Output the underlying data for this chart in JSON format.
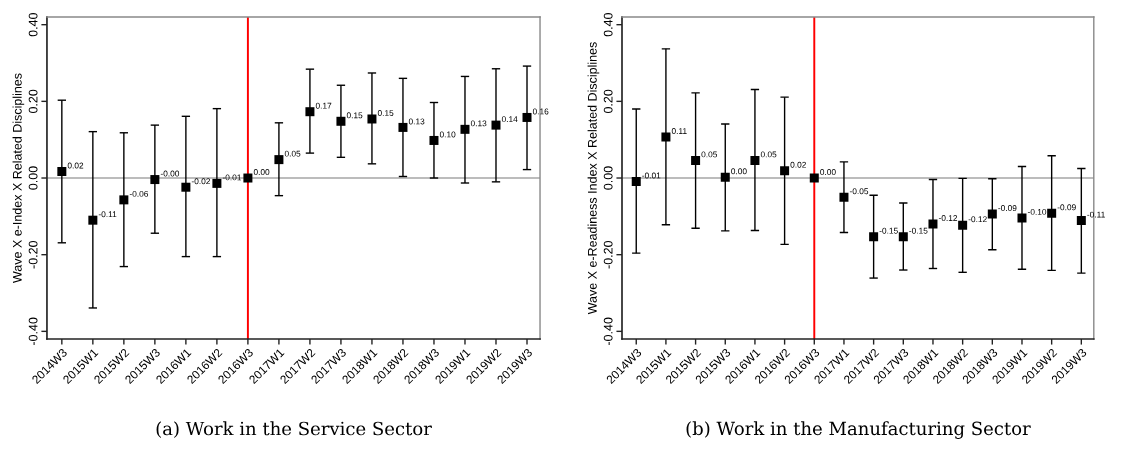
{
  "chart_data": [
    {
      "type": "scatter",
      "categories": [
        "2014W3",
        "2015W1",
        "2015W2",
        "2015W3",
        "2016W1",
        "2016W2",
        "2016W3",
        "2017W1",
        "2017W2",
        "2017W3",
        "2018W1",
        "2018W2",
        "2018W3",
        "2019W1",
        "2019W2",
        "2019W3"
      ],
      "series": [
        {
          "color": "#000000",
          "values": [
            0.017,
            -0.11,
            -0.057,
            -0.004,
            -0.024,
            -0.014,
            0.0,
            0.048,
            0.173,
            0.148,
            0.154,
            0.132,
            0.098,
            0.127,
            0.138,
            0.158
          ],
          "errors": [
            [
              -0.169,
              0.203
            ],
            [
              -0.339,
              0.121
            ],
            [
              -0.231,
              0.118
            ],
            [
              -0.144,
              0.138
            ],
            [
              -0.205,
              0.161
            ],
            [
              -0.205,
              0.181
            ],
            null,
            [
              -0.046,
              0.144
            ],
            [
              0.065,
              0.284
            ],
            [
              0.054,
              0.242
            ],
            [
              0.037,
              0.274
            ],
            [
              0.004,
              0.26
            ],
            [
              0.0,
              0.197
            ],
            [
              -0.013,
              0.265
            ],
            [
              -0.01,
              0.285
            ],
            [
              0.022,
              0.292
            ]
          ],
          "value_labels": [
            "0.02",
            "-0.11",
            "-0.06",
            "-0.00",
            "-0.02",
            "-0.01",
            "0.00",
            "0.05",
            "0.17",
            "0.15",
            "0.15",
            "0.13",
            "0.10",
            "0.13",
            "0.14",
            "0.16"
          ]
        }
      ],
      "marker": "square",
      "ylabel": "Wave X e-Index X Related Disciplines",
      "ylim": [
        -0.42,
        0.42
      ],
      "yticks": [
        {
          "value": -0.4,
          "label": "-0.40"
        },
        {
          "value": -0.2,
          "label": "-0.20"
        },
        {
          "value": 0,
          "label": "0.00"
        },
        {
          "value": 0.2,
          "label": "0.20"
        },
        {
          "value": 0.4,
          "label": "0.40"
        }
      ],
      "ref_lines": [
        {
          "axis": "y",
          "value": 0,
          "color": "#a6a6a6"
        },
        {
          "axis": "x",
          "value": "2016W3",
          "color": "#ff0000"
        }
      ],
      "annotations": [
        "(a) Work in the Service Sector"
      ]
    },
    {
      "type": "scatter",
      "categories": [
        "2014W3",
        "2015W1",
        "2015W2",
        "2015W3",
        "2016W1",
        "2016W2",
        "2016W3",
        "2017W1",
        "2017W2",
        "2017W3",
        "2018W1",
        "2018W2",
        "2018W3",
        "2019W1",
        "2019W2",
        "2019W3"
      ],
      "series": [
        {
          "color": "#000000",
          "values": [
            -0.009,
            0.107,
            0.046,
            0.002,
            0.046,
            0.019,
            0.0,
            -0.05,
            -0.153,
            -0.153,
            -0.12,
            -0.123,
            -0.094,
            -0.104,
            -0.092,
            -0.111
          ],
          "errors": [
            [
              -0.196,
              0.18
            ],
            [
              -0.122,
              0.337
            ],
            [
              -0.131,
              0.222
            ],
            [
              -0.138,
              0.141
            ],
            [
              -0.137,
              0.231
            ],
            [
              -0.173,
              0.211
            ],
            null,
            [
              -0.142,
              0.042
            ],
            [
              -0.261,
              -0.045
            ],
            [
              -0.24,
              -0.065
            ],
            [
              -0.236,
              -0.004
            ],
            [
              -0.246,
              -0.001
            ],
            [
              -0.187,
              -0.002
            ],
            [
              -0.238,
              0.03
            ],
            [
              -0.241,
              0.058
            ],
            [
              -0.248,
              0.025
            ]
          ],
          "value_labels": [
            "-0.01",
            "0.11",
            "0.05",
            "0.00",
            "0.05",
            "0.02",
            "0.00",
            "-0.05",
            "-0.15",
            "-0.15",
            "-0.12",
            "-0.12",
            "-0.09",
            "-0.10",
            "-0.09",
            "-0.11"
          ]
        }
      ],
      "marker": "square",
      "ylabel": "Wave X e-Readiness Index X Related Disciplines",
      "ylim": [
        -0.42,
        0.42
      ],
      "yticks": [
        {
          "value": -0.4,
          "label": "-0.40"
        },
        {
          "value": -0.2,
          "label": "-0.20"
        },
        {
          "value": 0,
          "label": "0.00"
        },
        {
          "value": 0.2,
          "label": "0.20"
        },
        {
          "value": 0.4,
          "label": "0.40"
        }
      ],
      "ref_lines": [
        {
          "axis": "y",
          "value": 0,
          "color": "#a6a6a6"
        },
        {
          "axis": "x",
          "value": "2016W3",
          "color": "#ff0000"
        }
      ],
      "annotations": [
        "(b) Work in the Manufacturing Sector"
      ]
    }
  ]
}
